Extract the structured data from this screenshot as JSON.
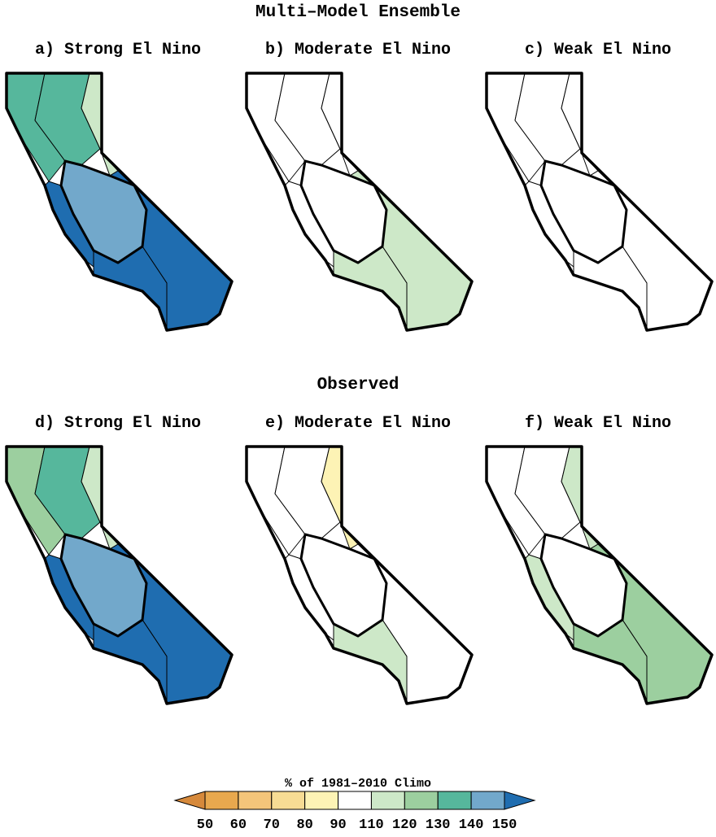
{
  "figure": {
    "top_title": "Multi–Model Ensemble",
    "bottom_title": "Observed",
    "panels": [
      {
        "label": "a) Strong El Nino",
        "fills": {
          "northwest": "#56b79c",
          "north_interior": "#56b79c",
          "ne_strip": "#cde8c8",
          "valley": "#72a8cb",
          "coast": "#1f6db0",
          "southeast": "#1f6db0",
          "south": "#1f6db0"
        }
      },
      {
        "label": "b) Moderate El Nino",
        "fills": {
          "northwest": "#ffffff",
          "north_interior": "#ffffff",
          "ne_strip": "#ffffff",
          "valley": "#ffffff",
          "coast": "#ffffff",
          "southeast": "#cde8c8",
          "south": "#cde8c8"
        }
      },
      {
        "label": "c) Weak El Nino",
        "fills": {
          "northwest": "#ffffff",
          "north_interior": "#ffffff",
          "ne_strip": "#ffffff",
          "valley": "#ffffff",
          "coast": "#ffffff",
          "southeast": "#ffffff",
          "south": "#ffffff"
        }
      },
      {
        "label": "d) Strong El Nino",
        "fills": {
          "northwest": "#9ccf9f",
          "north_interior": "#56b79c",
          "ne_strip": "#cde8c8",
          "valley": "#72a8cb",
          "coast": "#1f6db0",
          "southeast": "#1f6db0",
          "south": "#1f6db0"
        }
      },
      {
        "label": "e) Moderate El Nino",
        "fills": {
          "northwest": "#ffffff",
          "north_interior": "#ffffff",
          "ne_strip": "#fdf3b5",
          "valley": "#ffffff",
          "coast": "#ffffff",
          "southeast": "#ffffff",
          "south": "#cde8c8"
        }
      },
      {
        "label": "f) Weak El Nino",
        "fills": {
          "northwest": "#ffffff",
          "north_interior": "#ffffff",
          "ne_strip": "#cde8c8",
          "valley": "#ffffff",
          "coast": "#cde8c8",
          "southeast": "#9ccf9f",
          "south": "#9ccf9f"
        }
      }
    ],
    "colorbar": {
      "title": "% of 1981–2010 Climo",
      "ticks": [
        50,
        60,
        70,
        80,
        90,
        110,
        120,
        130,
        140,
        150
      ],
      "colors": [
        "#d6893b",
        "#e8a84e",
        "#f4c57a",
        "#f7dc94",
        "#fdf3b5",
        "#ffffff",
        "#cde8c8",
        "#9ccf9f",
        "#56b79c",
        "#72a8cb",
        "#1f6db0"
      ]
    }
  }
}
